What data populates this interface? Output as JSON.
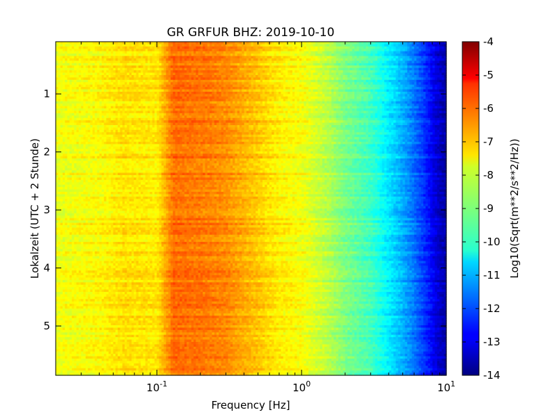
{
  "chart_data": {
    "type": "heatmap",
    "title": "GR GRFUR BHZ: 2019-10-10",
    "xlabel": "Frequency [Hz]",
    "ylabel": "Lokalzeit (UTC + 2 Stunde)",
    "x_scale": "log",
    "xlim": [
      0.02,
      10
    ],
    "x_ticks": [
      {
        "value": 0.1,
        "base": "10",
        "exp": "-1"
      },
      {
        "value": 1,
        "base": "10",
        "exp": "0"
      },
      {
        "value": 10,
        "base": "10",
        "exp": "1"
      }
    ],
    "ylim": [
      0.1,
      5.85
    ],
    "y_inverted": true,
    "y_ticks": [
      {
        "value": 1,
        "label": "1"
      },
      {
        "value": 2,
        "label": "2"
      },
      {
        "value": 3,
        "label": "3"
      },
      {
        "value": 4,
        "label": "4"
      },
      {
        "value": 5,
        "label": "5"
      }
    ],
    "colorbar": {
      "label": "Log10(Sqrt(m**2/s**2/Hz))",
      "range": [
        -14,
        -4
      ],
      "colormap": "jet",
      "ticks": [
        "-4",
        "-5",
        "-6",
        "-7",
        "-8",
        "-9",
        "-10",
        "-11",
        "-12",
        "-13",
        "-14"
      ]
    },
    "spectrum_profile": {
      "frequency_hz": [
        0.02,
        0.04,
        0.06,
        0.1,
        0.13,
        0.2,
        0.3,
        0.5,
        0.7,
        1.0,
        1.5,
        2.0,
        3.0,
        4.0,
        5.0,
        6.0,
        7.0,
        8.0,
        9.0,
        10.0
      ],
      "log10_amplitude": [
        -7.9,
        -7.7,
        -7.45,
        -7.55,
        -6.3,
        -6.4,
        -6.6,
        -7.2,
        -7.6,
        -7.8,
        -8.4,
        -9.0,
        -9.6,
        -10.4,
        -11.0,
        -11.6,
        -12.2,
        -12.8,
        -13.3,
        -13.6
      ]
    },
    "time_rows": 140,
    "grid": false,
    "legend": "none"
  }
}
